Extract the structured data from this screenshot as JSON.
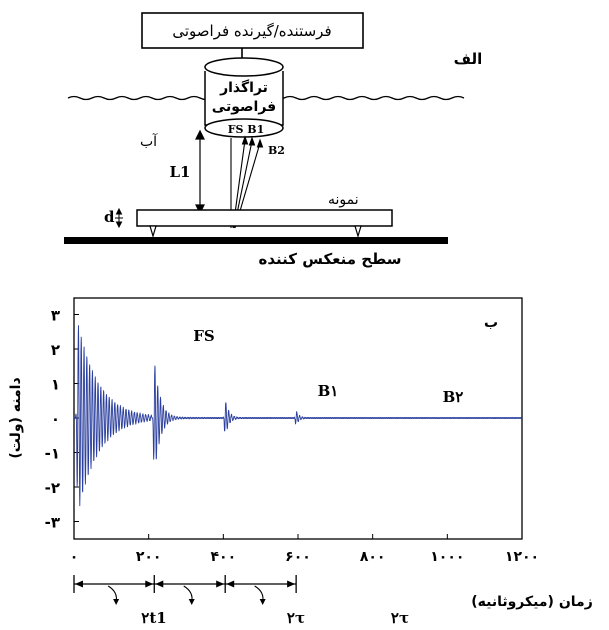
{
  "top": {
    "device_label": "فرستنده/گیرنده فراصوتی",
    "panel_label": "الف",
    "transducer_line1": "تراگذار",
    "transducer_line2": "فراصوتی",
    "water_label": "آب",
    "echo_labels": "FS B1",
    "b2_label": "B2",
    "distance_label": "L1",
    "thickness_label": "d",
    "sample_label": "نمونه",
    "reflector_label": "سطح منعکس کننده"
  },
  "chart": {
    "panel_label": "ب",
    "ylabel": "دامنه (ولت)",
    "xlabel": "زمان (میکروثانیه)",
    "annotations": {
      "fs": "FS",
      "b1": "B۱",
      "b2": "B۲"
    },
    "intervals": [
      "۲t1",
      "۲τ",
      "۲τ"
    ]
  },
  "chart_data": {
    "type": "line",
    "xlim": [
      0,
      1200
    ],
    "ylim": [
      -3.4,
      3.4
    ],
    "x_ticks": [
      0,
      200,
      400,
      600,
      800,
      1000,
      1200
    ],
    "x_tick_labels": [
      "۰",
      "۲۰۰",
      "۴۰۰",
      "۶۰۰",
      "۸۰۰",
      "۱۰۰۰",
      "۱۲۰۰"
    ],
    "y_ticks": [
      3,
      2,
      1,
      0,
      -1,
      -2,
      -3
    ],
    "y_tick_labels": [
      "۳",
      "۲",
      "۱",
      "۰",
      "-۱",
      "-۲",
      "-۳"
    ],
    "grid": false,
    "line_color": "#2b3f9e",
    "bursts": [
      {
        "name": "initial",
        "t": 10,
        "amp": 2.8,
        "decay": 55
      },
      {
        "name": "FS",
        "t": 215,
        "amp": 1.75,
        "decay": 16
      },
      {
        "name": "B1",
        "t": 405,
        "amp": 0.55,
        "decay": 10
      },
      {
        "name": "B2",
        "t": 595,
        "amp": 0.22,
        "decay": 8
      }
    ],
    "interval_markers_us": [
      0,
      215,
      405,
      595
    ]
  }
}
